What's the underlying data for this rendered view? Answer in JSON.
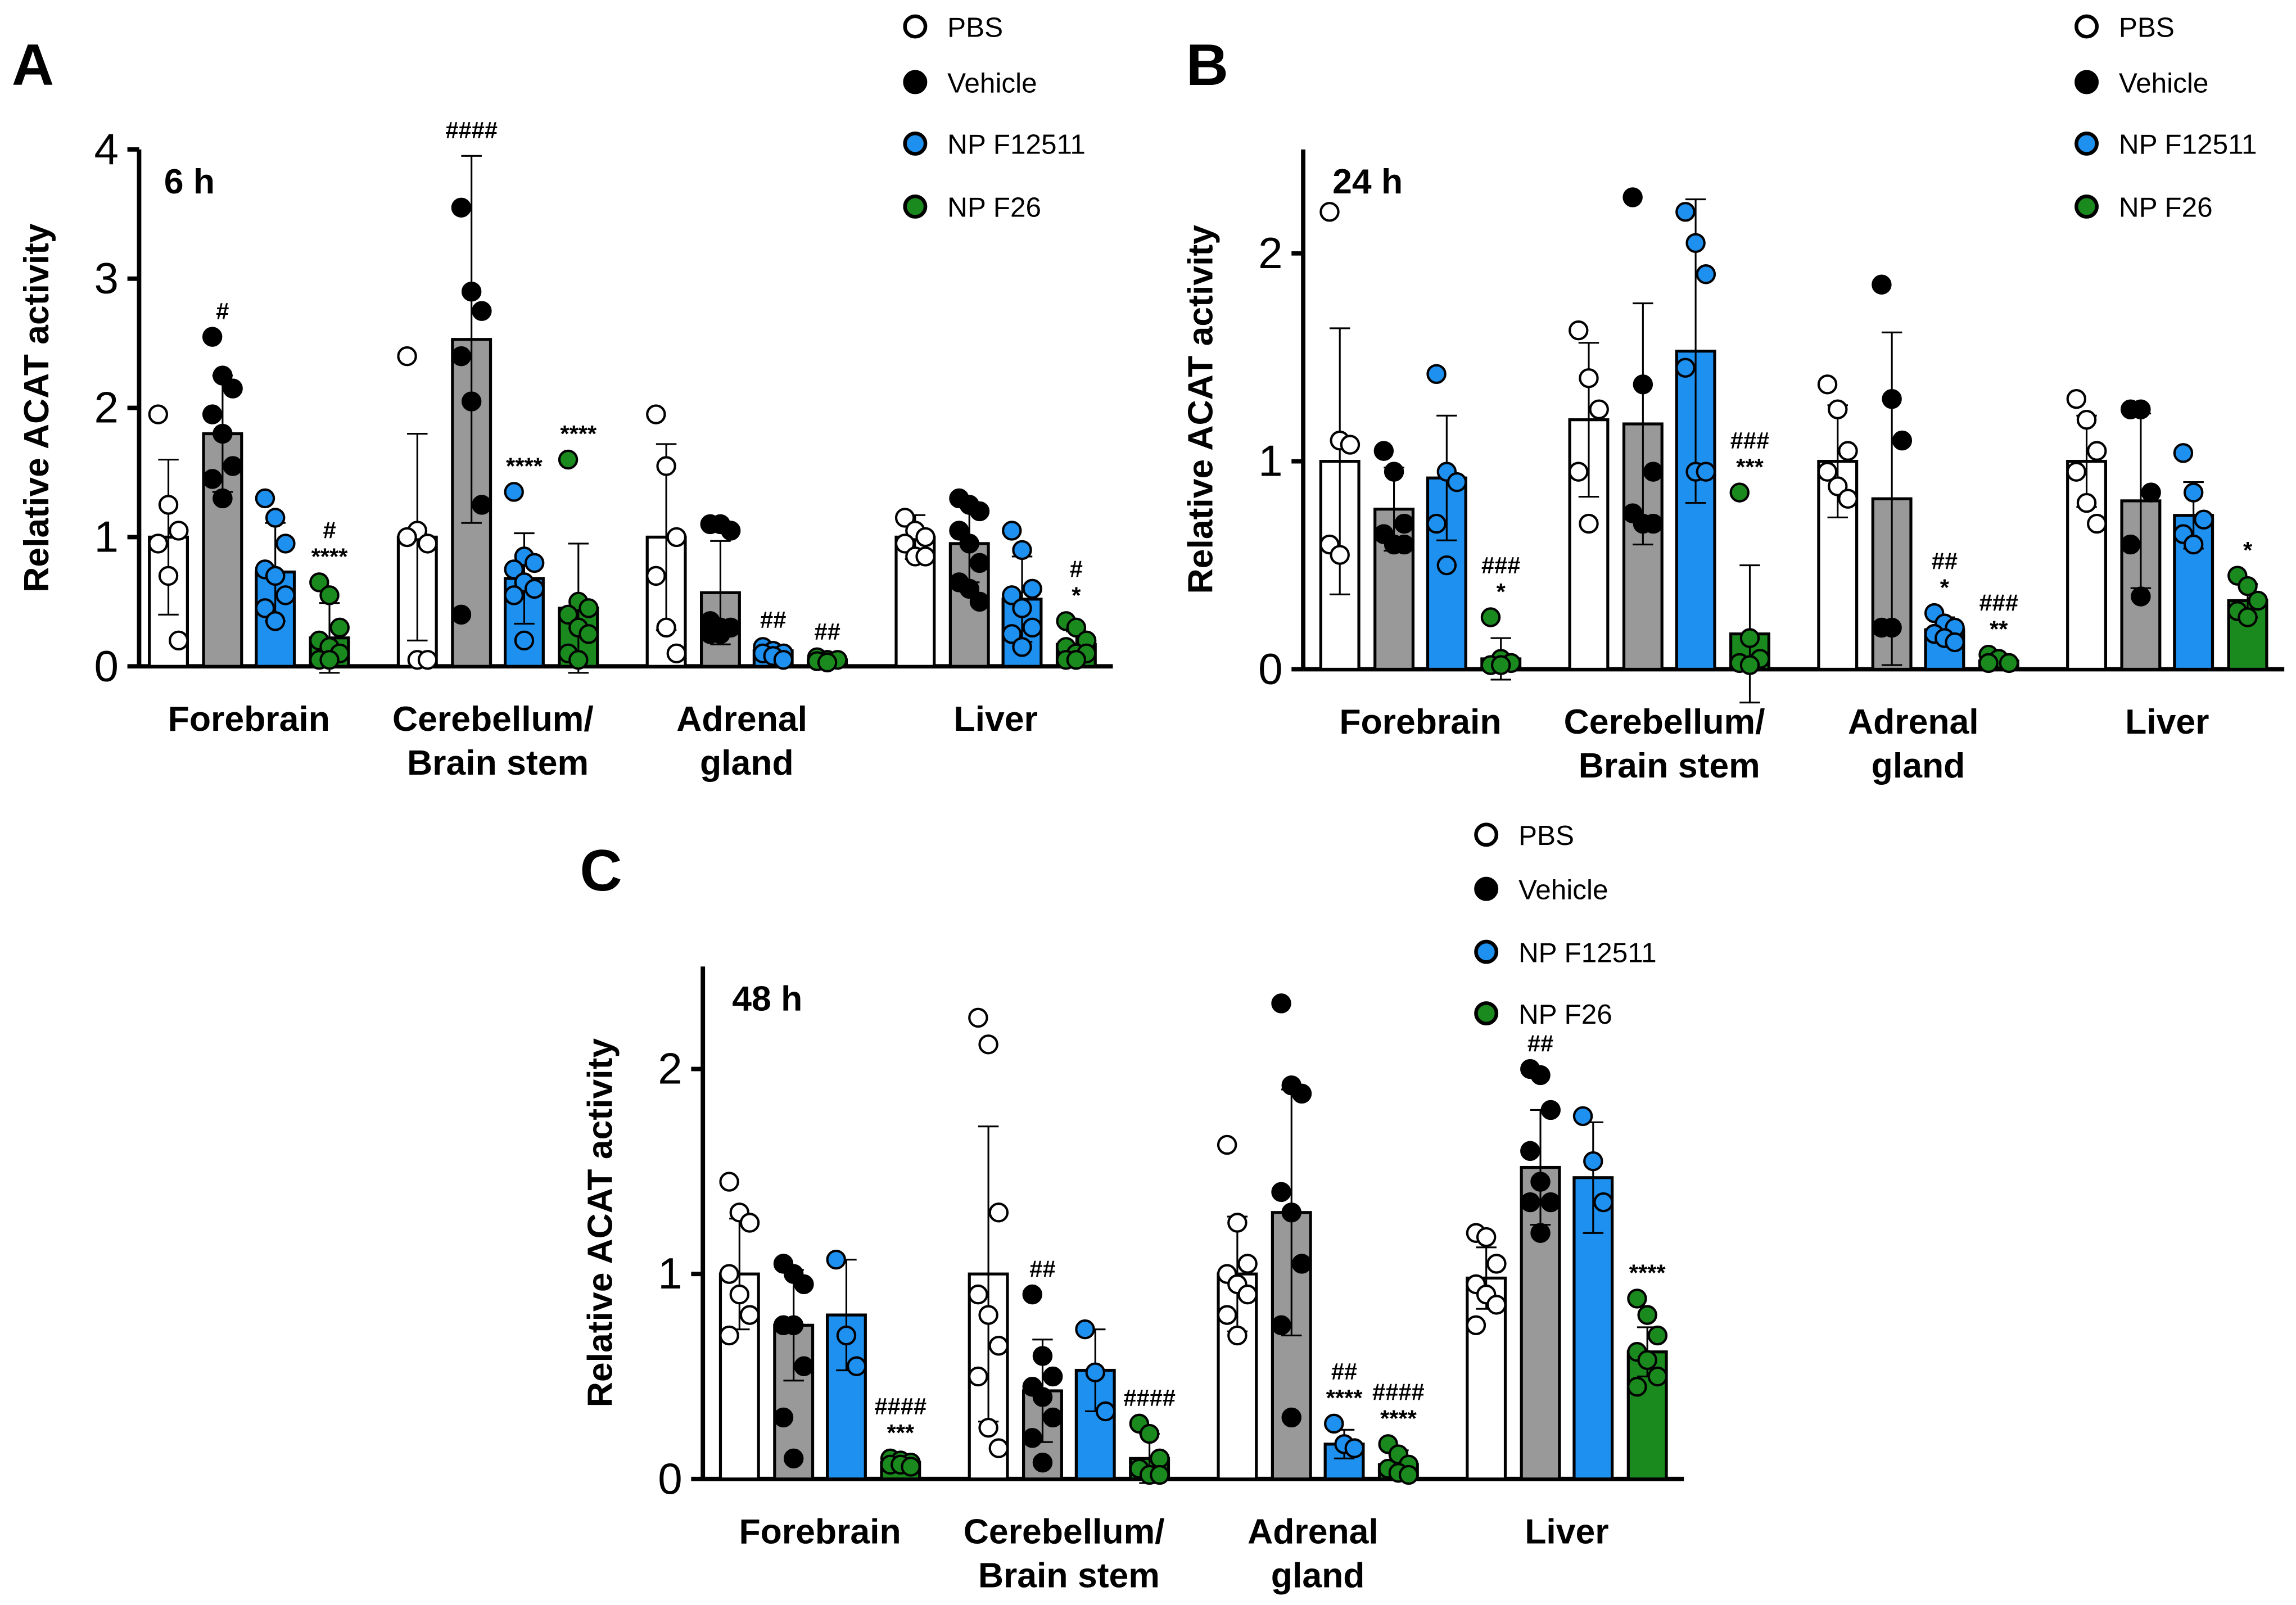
{
  "chart_data": [
    {
      "type": "bar",
      "panel": "A",
      "annotation": "6 h",
      "ylabel": "Relative ACAT activity",
      "categories": [
        "Forebrain",
        "Cerebellum/ Brain stem",
        "Adrenal gland",
        "Liver"
      ],
      "ylim": [
        0,
        4
      ],
      "yticks": [
        0,
        1,
        2,
        3,
        4
      ],
      "series": [
        {
          "name": "PBS",
          "color": "#ffffff",
          "values": [
            1.0,
            1.0,
            1.0,
            1.0
          ],
          "errors": [
            0.6,
            0.8,
            0.72,
            0.17
          ],
          "points": [
            [
              1.95,
              1.25,
              1.05,
              0.95,
              0.7,
              0.2
            ],
            [
              2.4,
              1.05,
              0.95,
              1.0,
              0.05,
              0.05
            ],
            [
              1.95,
              1.55,
              1.0,
              0.7,
              0.3,
              0.1
            ],
            [
              1.15,
              1.05,
              1.0,
              0.95,
              0.85,
              0.85
            ]
          ],
          "significance": [
            null,
            null,
            null,
            null
          ]
        },
        {
          "name": "Vehicle",
          "color": "#999999",
          "values": [
            1.8,
            2.53,
            0.57,
            0.95
          ],
          "errors": [
            0.45,
            1.42,
            0.4,
            0.3
          ],
          "points": [
            [
              2.55,
              2.25,
              2.15,
              1.95,
              1.8,
              1.55,
              1.45,
              1.3
            ],
            [
              3.55,
              2.9,
              2.75,
              2.4,
              2.05,
              1.25,
              0.4
            ],
            [
              1.1,
              1.1,
              1.05,
              0.35,
              0.3,
              0.3,
              0.25,
              0.25
            ],
            [
              1.3,
              1.25,
              1.2,
              1.05,
              0.95,
              0.8,
              0.65,
              0.6,
              0.5
            ]
          ],
          "significance": [
            [
              "#"
            ],
            [
              "####"
            ],
            null,
            null
          ]
        },
        {
          "name": "NP F12511",
          "color": "#1e90ef",
          "values": [
            0.73,
            0.68,
            0.12,
            0.52
          ],
          "errors": [
            0.38,
            0.35,
            0.04,
            0.33
          ],
          "points": [
            [
              1.3,
              1.15,
              0.95,
              0.75,
              0.7,
              0.55,
              0.45,
              0.35
            ],
            [
              1.35,
              0.85,
              0.8,
              0.75,
              0.65,
              0.6,
              0.55,
              0.2
            ],
            [
              0.15,
              0.12,
              0.1,
              0.1,
              0.08,
              0.05
            ],
            [
              1.05,
              0.9,
              0.6,
              0.55,
              0.45,
              0.3,
              0.25,
              0.15
            ]
          ],
          "significance": [
            null,
            [
              "****"
            ],
            [
              "##"
            ],
            null
          ]
        },
        {
          "name": "NP F26",
          "color": "#1b8a1e",
          "values": [
            0.22,
            0.45,
            0.05,
            0.17
          ],
          "errors": [
            0.27,
            0.5,
            0.02,
            0.1
          ],
          "points": [
            [
              0.65,
              0.55,
              0.3,
              0.2,
              0.15,
              0.1,
              0.05,
              0.05
            ],
            [
              1.6,
              0.5,
              0.45,
              0.4,
              0.3,
              0.25,
              0.1,
              0.05
            ],
            [
              0.07,
              0.05,
              0.05,
              0.04,
              0.03
            ],
            [
              0.35,
              0.3,
              0.2,
              0.15,
              0.1,
              0.1,
              0.05,
              0.05
            ]
          ],
          "significance": [
            [
              "#",
              "****"
            ],
            [
              "****"
            ],
            [
              "##"
            ],
            [
              "#",
              "*"
            ]
          ]
        }
      ]
    },
    {
      "type": "bar",
      "panel": "B",
      "annotation": "24 h",
      "ylabel": "Relative ACAT activity",
      "categories": [
        "Forebrain",
        "Cerebellum/ Brain stem",
        "Adrenal gland",
        "Liver"
      ],
      "ylim": [
        0,
        2.5
      ],
      "yticks": [
        0,
        1,
        2
      ],
      "series": [
        {
          "name": "PBS",
          "color": "#ffffff",
          "values": [
            1.0,
            1.2,
            1.0,
            1.0
          ],
          "errors": [
            0.64,
            0.37,
            0.27,
            0.22
          ],
          "points": [
            [
              2.2,
              1.1,
              1.08,
              0.6,
              0.55
            ],
            [
              1.63,
              1.4,
              1.25,
              0.95,
              0.7
            ],
            [
              1.37,
              1.25,
              1.05,
              0.95,
              0.88,
              0.82
            ],
            [
              1.3,
              1.2,
              1.05,
              0.95,
              0.8,
              0.7
            ]
          ],
          "significance": [
            null,
            null,
            null,
            null
          ]
        },
        {
          "name": "Vehicle",
          "color": "#999999",
          "values": [
            0.77,
            1.18,
            0.82,
            0.81
          ],
          "errors": [
            0.2,
            0.58,
            0.8,
            0.42
          ],
          "points": [
            [
              1.05,
              0.95,
              0.7,
              0.65,
              0.6,
              0.6
            ],
            [
              2.27,
              1.37,
              0.95,
              0.75,
              0.7,
              0.7
            ],
            [
              1.85,
              1.3,
              1.1,
              0.2,
              0.2
            ],
            [
              1.25,
              1.25,
              0.85,
              0.6,
              0.35
            ]
          ],
          "significance": [
            null,
            null,
            null,
            null
          ]
        },
        {
          "name": "NP F12511",
          "color": "#1e90ef",
          "values": [
            0.92,
            1.53,
            0.19,
            0.74
          ],
          "errors": [
            0.3,
            0.73,
            0.06,
            0.16
          ],
          "points": [
            [
              1.42,
              0.95,
              0.9,
              0.7,
              0.5
            ],
            [
              2.2,
              2.05,
              1.9,
              1.45,
              0.95,
              0.95
            ],
            [
              0.27,
              0.22,
              0.2,
              0.17,
              0.15,
              0.13
            ],
            [
              1.04,
              0.85,
              0.72,
              0.65,
              0.6
            ]
          ],
          "significance": [
            null,
            null,
            [
              "##",
              "*"
            ],
            null
          ]
        },
        {
          "name": "NP F26",
          "color": "#1b8a1e",
          "values": [
            0.05,
            0.17,
            0.04,
            0.33
          ],
          "errors": [
            0.1,
            0.33,
            0.02,
            0.08
          ],
          "points": [
            [
              0.25,
              0.05,
              0.03,
              0.02,
              0.02
            ],
            [
              0.85,
              0.15,
              0.05,
              0.03,
              0.02
            ],
            [
              0.07,
              0.05,
              0.03,
              0.03
            ],
            [
              0.45,
              0.4,
              0.33,
              0.28,
              0.25
            ]
          ],
          "significance": [
            [
              "###",
              "*"
            ],
            [
              "###",
              "***"
            ],
            [
              "###",
              "**"
            ],
            [
              "*"
            ]
          ]
        }
      ]
    },
    {
      "type": "bar",
      "panel": "C",
      "annotation": "48 h",
      "ylabel": "Relative ACAT activity",
      "categories": [
        "Forebrain",
        "Cerebellum/ Brain stem",
        "Adrenal gland",
        "Liver"
      ],
      "ylim": [
        0,
        2.5
      ],
      "yticks": [
        0,
        1,
        2
      ],
      "series": [
        {
          "name": "PBS",
          "color": "#ffffff",
          "values": [
            1.0,
            1.0,
            1.0,
            0.98
          ],
          "errors": [
            0.27,
            0.72,
            0.28,
            0.15
          ],
          "points": [
            [
              1.45,
              1.3,
              1.25,
              1.0,
              0.9,
              0.8,
              0.7
            ],
            [
              2.25,
              2.12,
              1.3,
              0.9,
              0.8,
              0.65,
              0.5,
              0.25,
              0.15
            ],
            [
              1.63,
              1.25,
              1.05,
              1.0,
              0.95,
              0.9,
              0.8,
              0.7
            ],
            [
              1.2,
              1.18,
              1.05,
              0.95,
              0.9,
              0.85,
              0.75
            ]
          ],
          "significance": [
            null,
            null,
            null,
            null
          ]
        },
        {
          "name": "Vehicle",
          "color": "#999999",
          "values": [
            0.75,
            0.43,
            1.3,
            1.52
          ],
          "errors": [
            0.27,
            0.25,
            0.6,
            0.28
          ],
          "points": [
            [
              1.05,
              1.0,
              0.95,
              0.75,
              0.75,
              0.55,
              0.3,
              0.1
            ],
            [
              0.9,
              0.6,
              0.5,
              0.45,
              0.4,
              0.3,
              0.2,
              0.08
            ],
            [
              2.32,
              1.92,
              1.88,
              1.4,
              1.3,
              1.05,
              0.75,
              0.3
            ],
            [
              2.0,
              1.97,
              1.8,
              1.6,
              1.45,
              1.35,
              1.35,
              1.2
            ]
          ],
          "significance": [
            null,
            [
              "##"
            ],
            null,
            [
              "##"
            ]
          ]
        },
        {
          "name": "NP F12511",
          "color": "#1e90ef",
          "values": [
            0.8,
            0.53,
            0.17,
            1.47
          ],
          "errors": [
            0.27,
            0.2,
            0.07,
            0.27
          ],
          "points": [
            [
              1.07,
              0.7,
              0.55
            ],
            [
              0.73,
              0.52,
              0.33
            ],
            [
              0.27,
              0.17,
              0.15
            ],
            [
              1.77,
              1.55,
              1.35
            ]
          ],
          "significance": [
            null,
            null,
            [
              "##",
              "****"
            ],
            null
          ]
        },
        {
          "name": "NP F26",
          "color": "#1b8a1e",
          "values": [
            0.08,
            0.1,
            0.07,
            0.62
          ],
          "errors": [
            0.02,
            0.12,
            0.07,
            0.12
          ],
          "points": [
            [
              0.1,
              0.09,
              0.08,
              0.07,
              0.07,
              0.06
            ],
            [
              0.27,
              0.22,
              0.1,
              0.05,
              0.02,
              0.02
            ],
            [
              0.17,
              0.12,
              0.07,
              0.05,
              0.03,
              0.02
            ],
            [
              0.88,
              0.8,
              0.7,
              0.62,
              0.58,
              0.5,
              0.45
            ]
          ],
          "significance": [
            [
              "####",
              "***"
            ],
            [
              "####"
            ],
            [
              "####",
              "****"
            ],
            [
              "****"
            ]
          ]
        }
      ]
    }
  ]
}
